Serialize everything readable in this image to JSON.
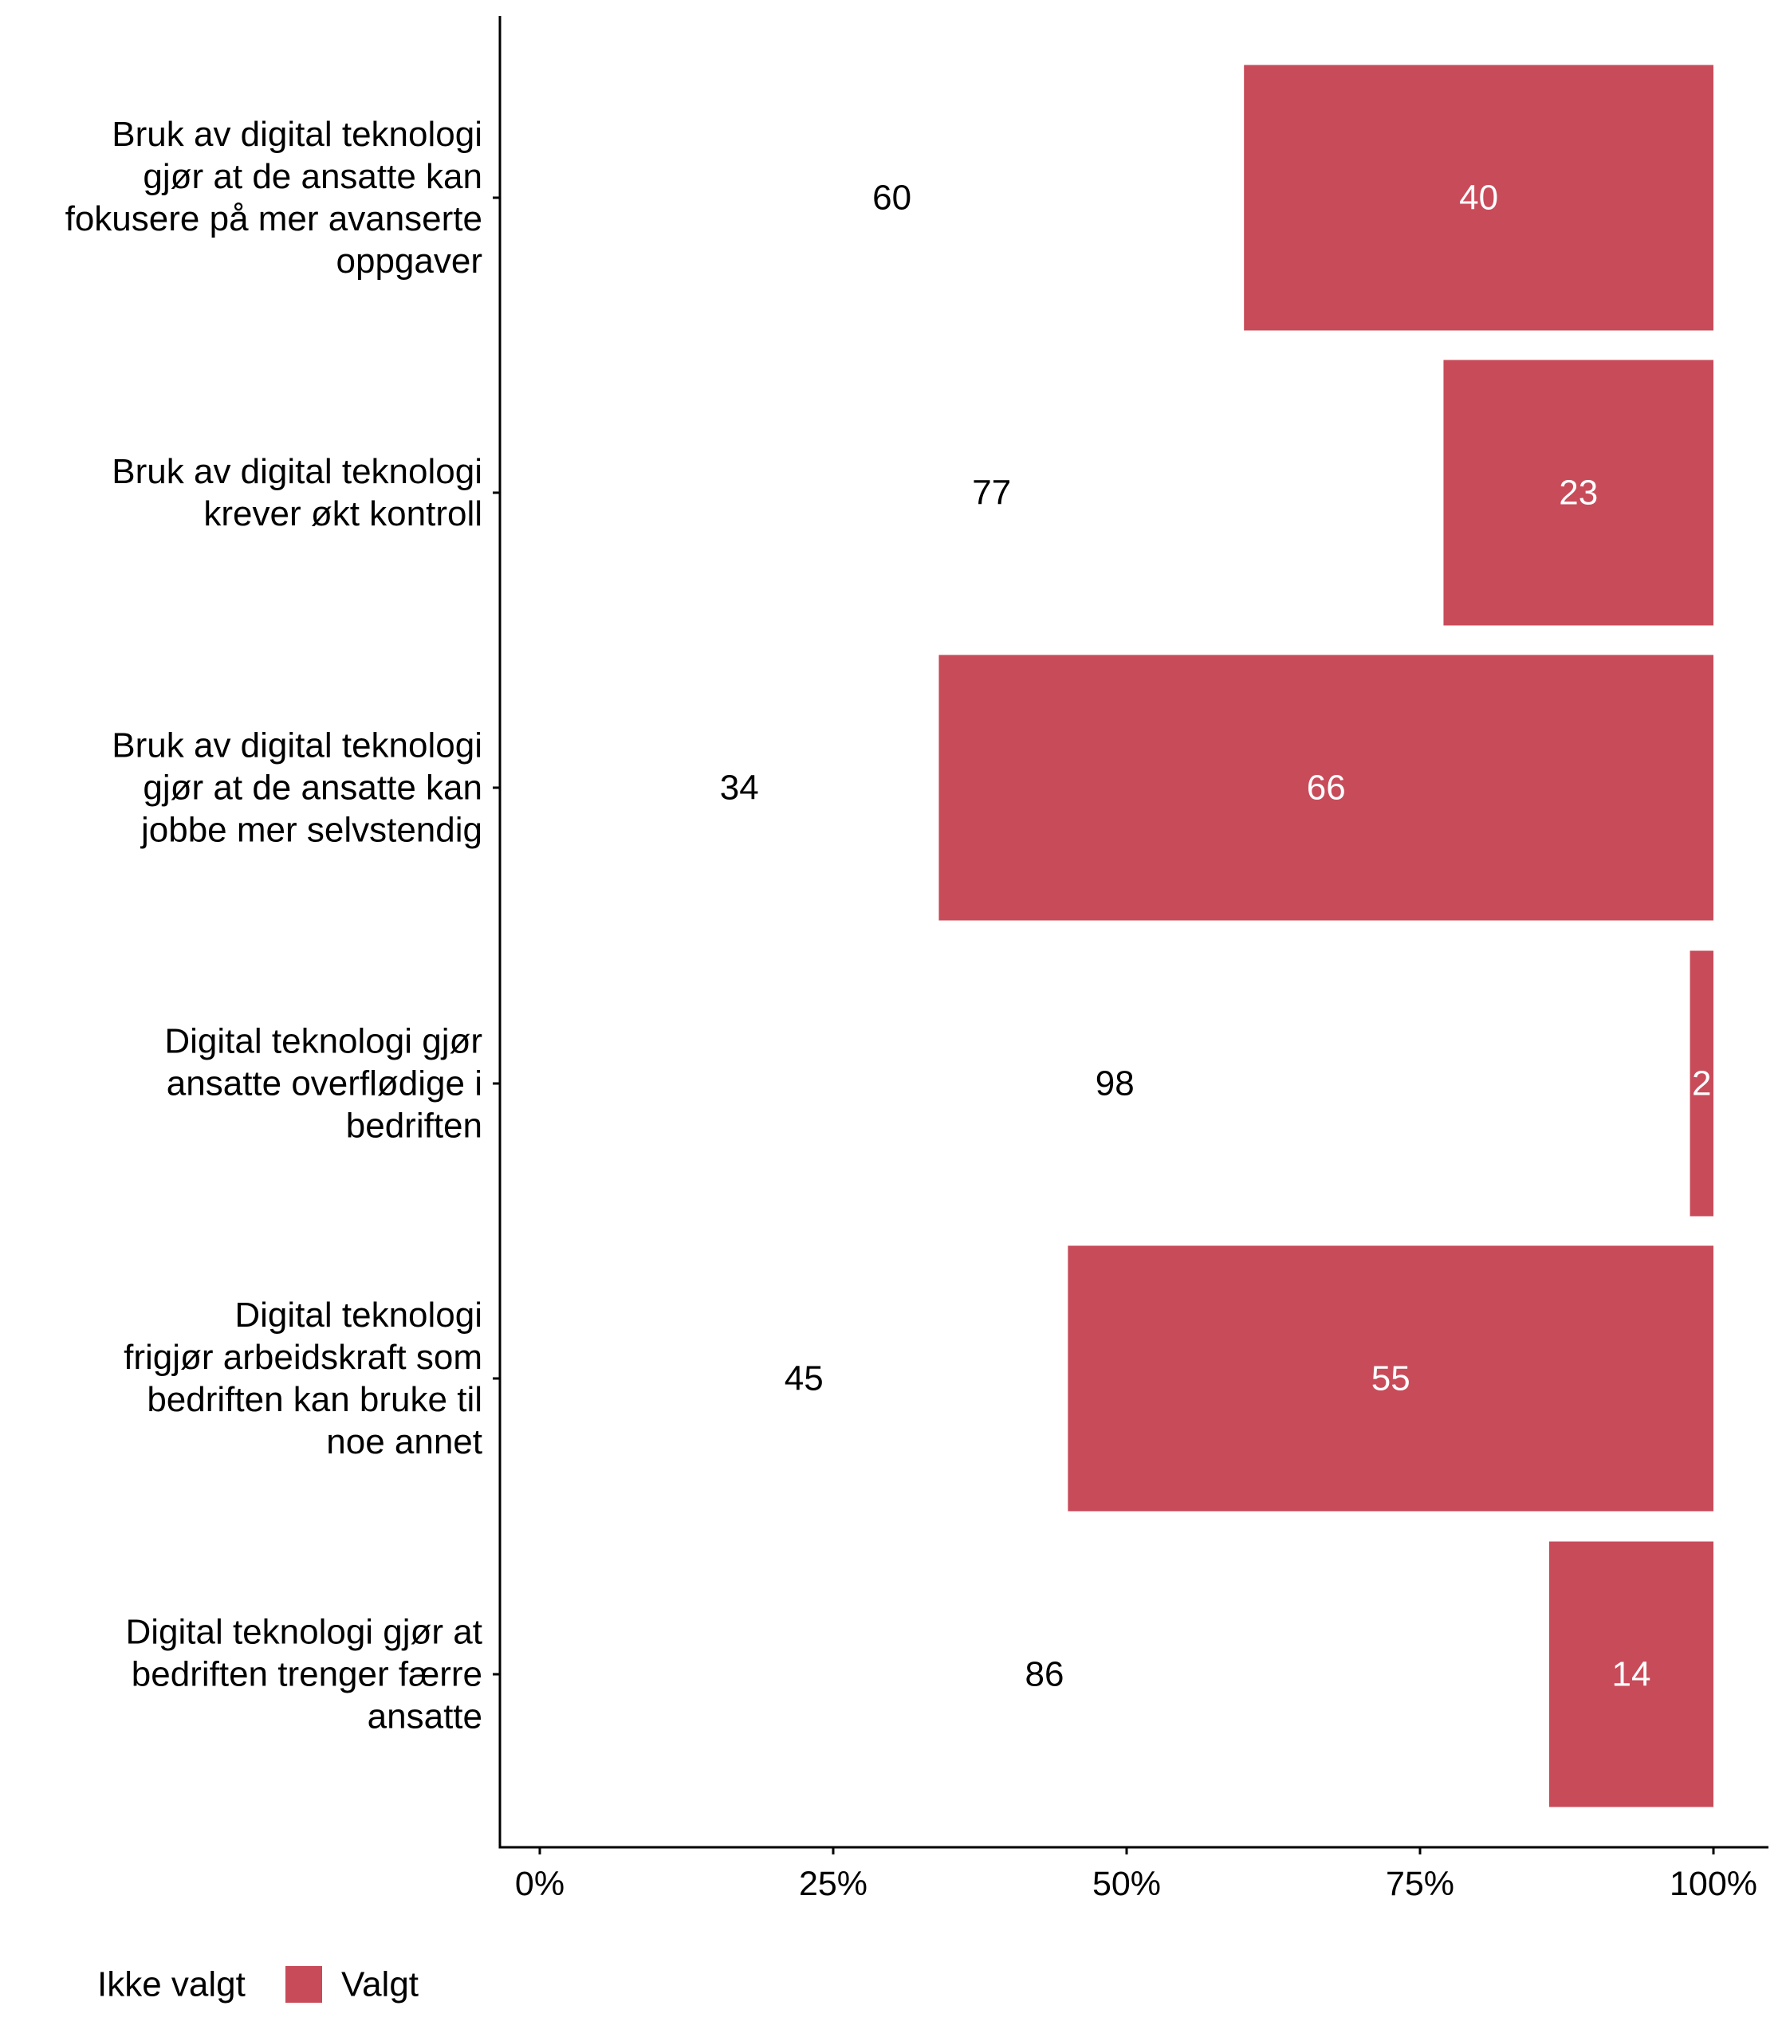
{
  "chart_data": {
    "type": "bar",
    "orientation": "horizontal",
    "stacked": true,
    "title": "",
    "xlabel": "",
    "ylabel": "",
    "xlim": [
      0,
      100
    ],
    "grid": false,
    "legend_position": "bottom-left",
    "categories": [
      {
        "label": "Bruk av digital teknologi gjør at de ansatte kan fokusere på mer avanserte oppgaver",
        "lines": [
          "Bruk av digital teknologi",
          "gjør at de ansatte kan",
          "fokusere på mer avanserte",
          "oppgaver"
        ]
      },
      {
        "label": "Bruk av digital teknologi krever økt kontroll",
        "lines": [
          "Bruk av digital teknologi",
          "krever økt kontroll"
        ]
      },
      {
        "label": "Bruk av digital teknologi gjør at de ansatte kan jobbe mer selvstendig",
        "lines": [
          "Bruk av digital teknologi",
          "gjør at de ansatte kan",
          "jobbe mer selvstendig"
        ]
      },
      {
        "label": "Digital teknologi gjør ansatte overflødige i bedriften",
        "lines": [
          "Digital teknologi gjør",
          "ansatte overflødige i",
          "bedriften"
        ]
      },
      {
        "label": "Digital teknologi frigjør arbeidskraft som bedriften kan bruke til noe annet",
        "lines": [
          "Digital teknologi",
          "frigjør arbeidskraft som",
          "bedriften kan bruke til",
          "noe annet"
        ]
      },
      {
        "label": "Digital teknologi gjør at bedriften trenger færre ansatte",
        "lines": [
          "Digital teknologi gjør at",
          "bedriften trenger færre",
          "ansatte"
        ]
      }
    ],
    "series": [
      {
        "name": "Ikke valgt",
        "color": "#ffffff",
        "label_color": "#000000",
        "values": [
          60,
          77,
          34,
          98,
          45,
          86
        ],
        "value_labels": [
          "60",
          "77",
          "34",
          "98",
          "45",
          "86"
        ]
      },
      {
        "name": "Valgt",
        "color": "#c84b5a",
        "label_color": "#ffffff",
        "values": [
          40,
          23,
          66,
          2,
          55,
          14
        ],
        "value_labels": [
          "40",
          "23",
          "66",
          "2",
          "55",
          "14"
        ]
      }
    ],
    "x_ticks": [
      {
        "value": 0,
        "label": "0%"
      },
      {
        "value": 25,
        "label": "25%"
      },
      {
        "value": 50,
        "label": "50%"
      },
      {
        "value": 75,
        "label": "75%"
      },
      {
        "value": 100,
        "label": "100%"
      }
    ]
  }
}
